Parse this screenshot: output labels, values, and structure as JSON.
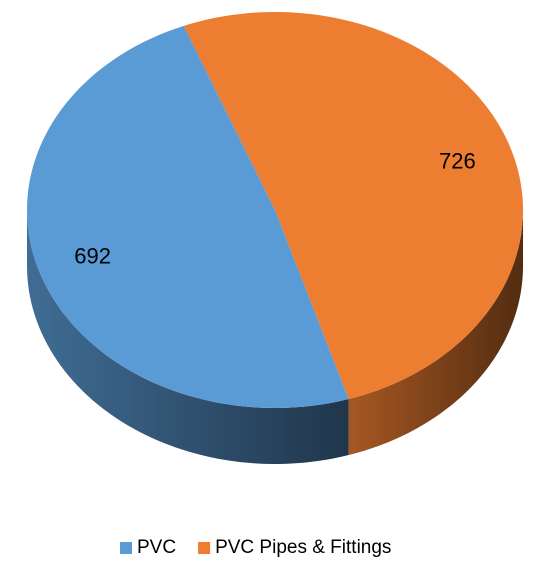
{
  "chart_data": {
    "type": "pie",
    "categories": [
      "PVC",
      "PVC Pipes & Fittings"
    ],
    "values": [
      692,
      726
    ],
    "colors": [
      "#5b9bd5",
      "#ed7d31"
    ],
    "legend": "bottom"
  }
}
